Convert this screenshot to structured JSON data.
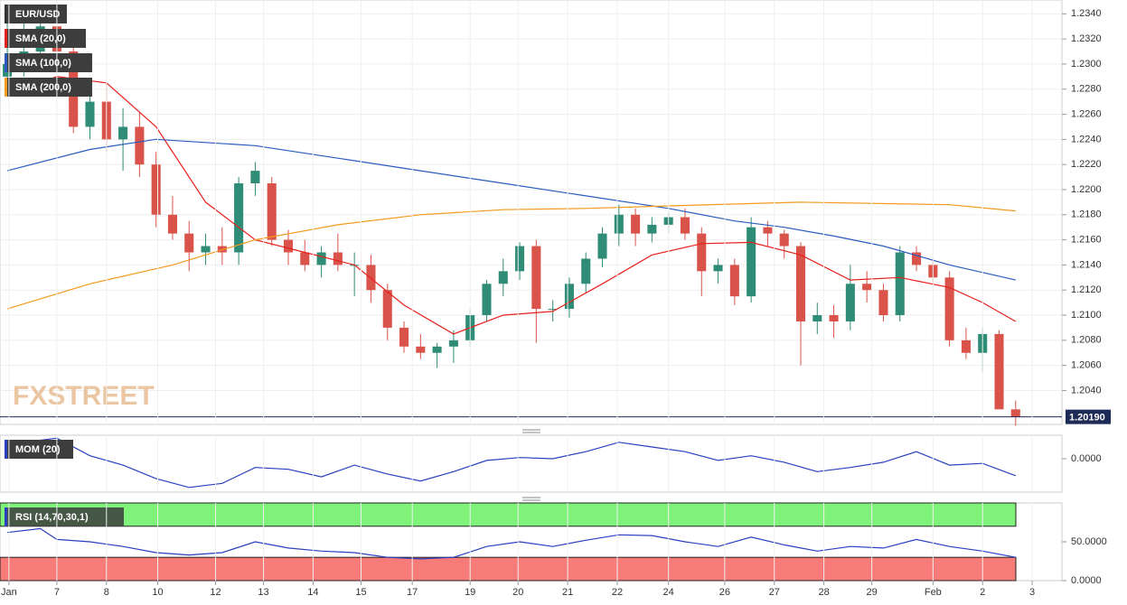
{
  "chart_data": [
    {
      "type": "candlestick",
      "title": "EUR/USD",
      "watermark": "FXSTREET",
      "up_color": "#2f8c76",
      "down_color": "#d9534a",
      "open": [
        1.229,
        1.23,
        1.231,
        1.233,
        1.231,
        1.225,
        1.227,
        1.224,
        1.225,
        1.222,
        1.218,
        1.2165,
        1.215,
        1.2155,
        1.215,
        1.2205,
        1.2205,
        1.216,
        1.215,
        1.214,
        1.215,
        1.214,
        1.214,
        1.212,
        1.209,
        1.2075,
        1.207,
        1.2075,
        1.208,
        1.21,
        1.2125,
        1.2135,
        1.2155,
        1.2105,
        1.2105,
        1.2125,
        1.2145,
        1.2165,
        1.218,
        1.2165,
        1.2172,
        1.2178,
        1.2165,
        1.2135,
        1.214,
        1.2115,
        1.217,
        1.2165,
        1.2155,
        1.2095,
        1.21,
        1.2095,
        1.2125,
        1.212,
        1.21,
        1.215,
        1.214,
        1.213,
        1.208,
        1.207,
        1.2085,
        1.2025
      ],
      "high": [
        1.2345,
        1.2335,
        1.234,
        1.2345,
        1.232,
        1.228,
        1.2285,
        1.2265,
        1.2262,
        1.223,
        1.2195,
        1.2175,
        1.2165,
        1.217,
        1.221,
        1.2222,
        1.221,
        1.2168,
        1.216,
        1.2155,
        1.2165,
        1.215,
        1.2148,
        1.2125,
        1.2095,
        1.2085,
        1.2078,
        1.2088,
        1.2105,
        1.2128,
        1.2145,
        1.2158,
        1.216,
        1.2112,
        1.213,
        1.215,
        1.217,
        1.2188,
        1.2185,
        1.2178,
        1.2182,
        1.2185,
        1.217,
        1.2145,
        1.2145,
        1.2178,
        1.2175,
        1.2168,
        1.2158,
        1.211,
        1.2108,
        1.214,
        1.2135,
        1.2125,
        1.2155,
        1.2155,
        1.2145,
        1.2135,
        1.209,
        1.209,
        1.2088,
        1.2032
      ],
      "low": [
        1.2275,
        1.229,
        1.23,
        1.23,
        1.2245,
        1.224,
        1.223,
        1.2215,
        1.221,
        1.217,
        1.216,
        1.2135,
        1.214,
        1.214,
        1.214,
        1.2195,
        1.2155,
        1.214,
        1.2135,
        1.213,
        1.2135,
        1.2115,
        1.211,
        1.208,
        1.207,
        1.2065,
        1.2058,
        1.2062,
        1.2075,
        1.2095,
        1.2115,
        1.2128,
        1.2078,
        1.2095,
        1.2098,
        1.2118,
        1.2138,
        1.2155,
        1.2155,
        1.2158,
        1.2165,
        1.216,
        1.2115,
        1.2125,
        1.2108,
        1.211,
        1.2155,
        1.2145,
        1.206,
        1.2085,
        1.2082,
        1.2088,
        1.211,
        1.2095,
        1.2095,
        1.2135,
        1.2125,
        1.2075,
        1.2065,
        1.2055,
        1.2025,
        1.2012
      ],
      "close": [
        1.23,
        1.231,
        1.233,
        1.231,
        1.225,
        1.227,
        1.224,
        1.225,
        1.222,
        1.218,
        1.2165,
        1.215,
        1.2155,
        1.215,
        1.2205,
        1.2215,
        1.216,
        1.215,
        1.214,
        1.215,
        1.214,
        1.214,
        1.212,
        1.209,
        1.2075,
        1.207,
        1.2075,
        1.208,
        1.21,
        1.2125,
        1.2135,
        1.2155,
        1.2105,
        1.2105,
        1.2125,
        1.2145,
        1.2165,
        1.218,
        1.2165,
        1.2172,
        1.2178,
        1.2165,
        1.2135,
        1.214,
        1.2115,
        1.217,
        1.2165,
        1.2155,
        1.2095,
        1.21,
        1.2095,
        1.2125,
        1.212,
        1.21,
        1.215,
        1.214,
        1.213,
        1.208,
        1.207,
        1.2085,
        1.2025,
        1.2019
      ],
      "series": [
        {
          "name": "SMA (20,0)",
          "color": "#e8201c",
          "x": [
            0,
            3,
            6,
            9,
            12,
            15,
            18,
            21,
            24,
            27,
            30,
            33,
            36,
            39,
            42,
            45,
            48,
            51,
            54,
            57,
            59,
            61
          ],
          "values": [
            1.2275,
            1.229,
            1.2285,
            1.225,
            1.219,
            1.216,
            1.215,
            1.214,
            1.2108,
            1.2085,
            1.21,
            1.2103,
            1.2125,
            1.2148,
            1.2157,
            1.2158,
            1.2148,
            1.2128,
            1.213,
            1.2122,
            1.211,
            1.2095
          ]
        },
        {
          "name": "SMA (100,0)",
          "color": "#2a5cbf",
          "x": [
            0,
            5,
            9,
            15,
            20,
            25,
            30,
            35,
            40,
            44,
            47,
            50,
            53,
            57,
            61
          ],
          "values": [
            1.2215,
            1.2232,
            1.224,
            1.2235,
            1.2225,
            1.2215,
            1.2205,
            1.2195,
            1.2185,
            1.2175,
            1.217,
            1.2163,
            1.2155,
            1.214,
            1.2128
          ]
        },
        {
          "name": "SMA (200,0)",
          "color": "#f39a1d",
          "x": [
            0,
            5,
            10,
            15,
            20,
            25,
            30,
            35,
            40,
            48,
            57,
            61
          ],
          "values": [
            1.2105,
            1.2125,
            1.214,
            1.216,
            1.2172,
            1.218,
            1.2184,
            1.2185,
            1.2187,
            1.219,
            1.2188,
            1.2183
          ]
        }
      ],
      "price_label": {
        "value": 1.2019,
        "label": "1.20190"
      },
      "xlim": [
        -0.44,
        63.8
      ],
      "ylim": [
        1.2013,
        1.2351
      ],
      "yticks": [
        {
          "value": 1.204,
          "label": "1.2040"
        },
        {
          "value": 1.206,
          "label": "1.2060"
        },
        {
          "value": 1.208,
          "label": "1.2080"
        },
        {
          "value": 1.21,
          "label": "1.2100"
        },
        {
          "value": 1.212,
          "label": "1.2120"
        },
        {
          "value": 1.214,
          "label": "1.2140"
        },
        {
          "value": 1.216,
          "label": "1.2160"
        },
        {
          "value": 1.218,
          "label": "1.2180"
        },
        {
          "value": 1.22,
          "label": "1.2200"
        },
        {
          "value": 1.222,
          "label": "1.2220"
        },
        {
          "value": 1.224,
          "label": "1.2240"
        },
        {
          "value": 1.226,
          "label": "1.2260"
        },
        {
          "value": 1.228,
          "label": "1.2280"
        },
        {
          "value": 1.23,
          "label": "1.2300"
        },
        {
          "value": 1.232,
          "label": "1.2320"
        },
        {
          "value": 1.234,
          "label": "1.2340"
        }
      ],
      "xticks": [
        {
          "value": 0.1,
          "label": "Jan"
        },
        {
          "value": 3,
          "label": "7"
        },
        {
          "value": 6,
          "label": "8"
        },
        {
          "value": 9.1,
          "label": "10"
        },
        {
          "value": 12.6,
          "label": "12"
        },
        {
          "value": 15.5,
          "label": "13"
        },
        {
          "value": 18.5,
          "label": "14"
        },
        {
          "value": 21.4,
          "label": "15"
        },
        {
          "value": 24.5,
          "label": "17"
        },
        {
          "value": 28,
          "label": "19"
        },
        {
          "value": 30.9,
          "label": "20"
        },
        {
          "value": 33.9,
          "label": "21"
        },
        {
          "value": 36.9,
          "label": "22"
        },
        {
          "value": 40,
          "label": "24"
        },
        {
          "value": 43.4,
          "label": "26"
        },
        {
          "value": 46.4,
          "label": "27"
        },
        {
          "value": 49.4,
          "label": "28"
        },
        {
          "value": 52.3,
          "label": "29"
        },
        {
          "value": 56,
          "label": "Feb"
        },
        {
          "value": 59,
          "label": "2"
        },
        {
          "value": 62,
          "label": "3"
        }
      ],
      "grid": true
    },
    {
      "type": "line",
      "title": "MOM (20)",
      "series": [
        {
          "name": "MOM (20)",
          "color": "#2a3fbf",
          "x": [
            0,
            1,
            3,
            5,
            7,
            9,
            11,
            13,
            15,
            17,
            19,
            21,
            23,
            25,
            27,
            29,
            31,
            33,
            35,
            37,
            39,
            41,
            43,
            45,
            47,
            49,
            51,
            53,
            55,
            57,
            59,
            61
          ],
          "values": [
            0.0015,
            0.0028,
            0.0035,
            0.0005,
            -0.0011,
            -0.0034,
            -0.0049,
            -0.0042,
            -0.0015,
            -0.0018,
            -0.0031,
            -0.0011,
            -0.0026,
            -0.0038,
            -0.0022,
            -0.0003,
            0.0002,
            0,
            0.0012,
            0.0028,
            0.002,
            0.0012,
            -0.0003,
            0.0005,
            -0.0006,
            -0.0022,
            -0.0015,
            -0.0006,
            0.0012,
            -0.0011,
            -0.0008,
            -0.0029
          ]
        }
      ],
      "ylim": [
        -0.0057,
        0.004
      ],
      "yticks": [
        {
          "value": 0,
          "label": "0.0000"
        }
      ]
    },
    {
      "type": "line",
      "title": "RSI (14,70,30,1)",
      "series": [
        {
          "name": "RSI (14,70,30,1)",
          "color": "#2a3fbf",
          "x": [
            0,
            2,
            3,
            5,
            7,
            9,
            11,
            13,
            15,
            17,
            19,
            21,
            23,
            25,
            27,
            29,
            31,
            33,
            35,
            37,
            39,
            41,
            43,
            45,
            47,
            49,
            51,
            53,
            55,
            57,
            59,
            61
          ],
          "values": [
            62,
            67,
            53,
            50,
            44,
            36,
            33,
            36,
            50,
            42,
            38,
            36,
            30,
            28,
            30,
            44,
            50,
            44,
            52,
            59,
            58,
            50,
            44,
            56,
            46,
            38,
            44,
            42,
            53,
            44,
            38,
            30
          ]
        }
      ],
      "bands": [
        {
          "from": 70,
          "to": 100,
          "color": "#7ff27a"
        },
        {
          "from": 0,
          "to": 30,
          "color": "#f77b78"
        }
      ],
      "ylim": [
        0,
        100
      ],
      "yticks": [
        {
          "value": 0,
          "label": "0.0000"
        },
        {
          "value": 50,
          "label": "50.0000"
        }
      ]
    }
  ]
}
